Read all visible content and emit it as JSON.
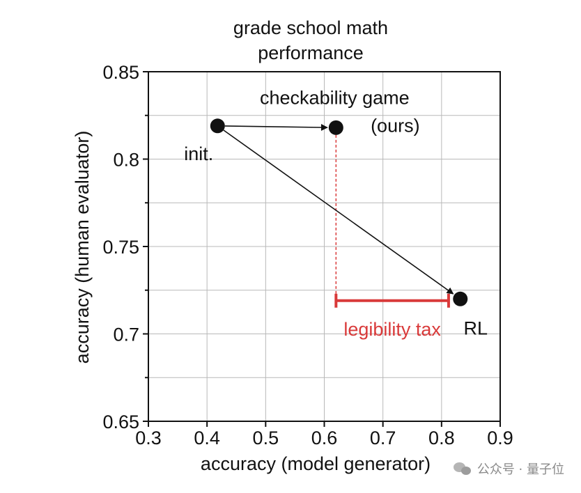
{
  "chart_data": {
    "type": "scatter",
    "title": [
      "grade school math",
      "performance"
    ],
    "xlabel": "accuracy (model generator)",
    "ylabel": "accuracy (human evaluator)",
    "xlim": [
      0.3,
      0.9
    ],
    "ylim": [
      0.65,
      0.85
    ],
    "xticks": [
      "0.3",
      "0.4",
      "0.5",
      "0.6",
      "0.7",
      "0.8",
      "0.9"
    ],
    "yticks": [
      "0.65",
      "0.7",
      "0.75",
      "0.8",
      "0.85"
    ],
    "grid": true,
    "points": [
      {
        "label": "init.",
        "x": 0.418,
        "y": 0.819
      },
      {
        "label": [
          "checkability game",
          "(ours)"
        ],
        "x": 0.62,
        "y": 0.818
      },
      {
        "label": "RL",
        "x": 0.832,
        "y": 0.72
      }
    ],
    "arrows": [
      {
        "from": "init.",
        "to": "checkability game"
      },
      {
        "from": "init.",
        "to": "RL"
      }
    ],
    "annotation": {
      "label": "legibility tax",
      "color": "#d93a3a",
      "x_from": 0.62,
      "x_to": 0.812,
      "y": 0.719
    }
  },
  "watermark": {
    "text": "公众号 · 量子位",
    "icon": "wechat-icon"
  }
}
